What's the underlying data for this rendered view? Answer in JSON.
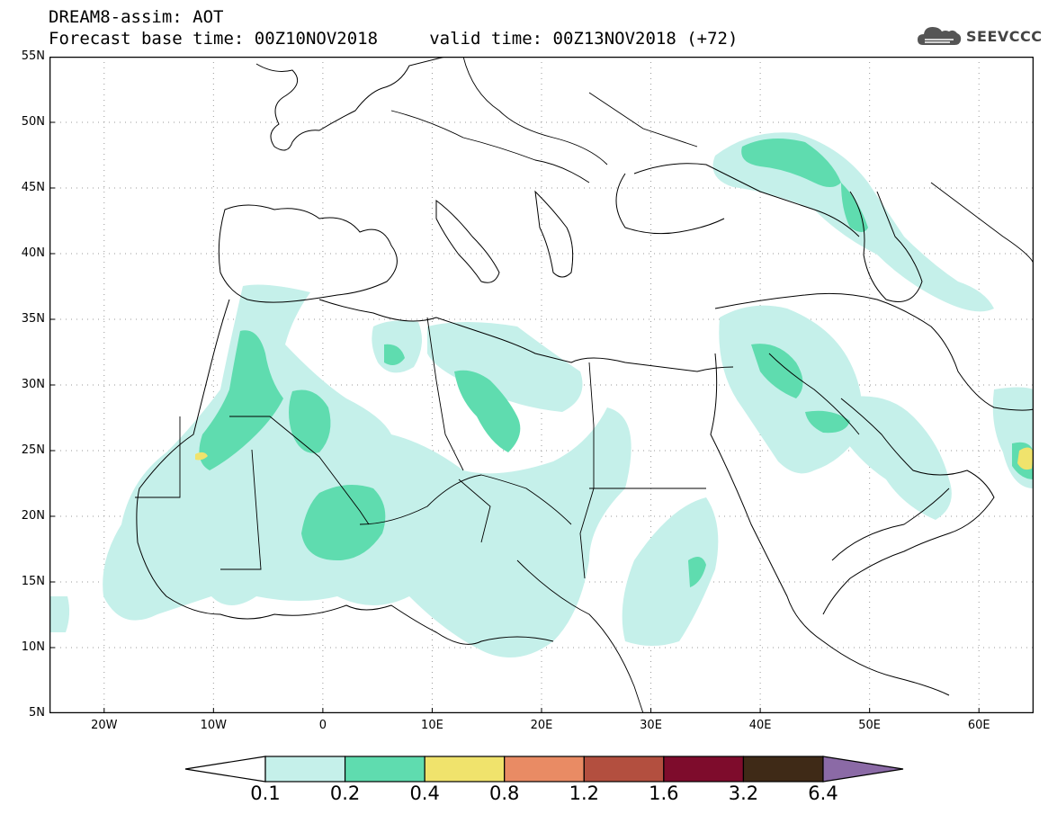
{
  "header": {
    "title_line1": "DREAM8-assim: AOT",
    "title_line2": "Forecast base time: 00Z10NOV2018     valid time: 00Z13NOV2018 (+72)",
    "logo_text": "SEEVCCC"
  },
  "map": {
    "lat_labels": [
      "55N",
      "50N",
      "45N",
      "40N",
      "35N",
      "30N",
      "25N",
      "20N",
      "15N",
      "10N",
      "5N"
    ],
    "lon_labels": [
      "20W",
      "10W",
      "0",
      "10E",
      "20E",
      "30E",
      "40E",
      "50E",
      "60E"
    ],
    "grid": "dotted",
    "extent": {
      "lon_min": -25,
      "lon_max": 65,
      "lat_min": 5,
      "lat_max": 55
    }
  },
  "colorbar": {
    "labels": [
      "0.1",
      "0.2",
      "0.4",
      "0.8",
      "1.2",
      "1.6",
      "3.2",
      "6.4"
    ],
    "colors": [
      "#c5f0ea",
      "#5fdcaf",
      "#f0e36c",
      "#e98b64",
      "#b34f3f",
      "#7e0c2c",
      "#3f2a17",
      "#8b6aa6"
    ]
  }
}
